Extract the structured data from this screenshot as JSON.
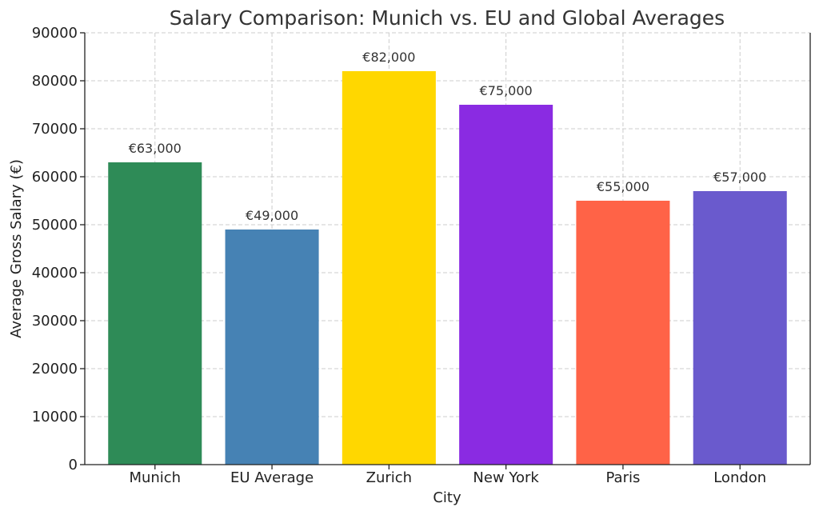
{
  "chart_data": {
    "type": "bar",
    "title": "Salary Comparison: Munich vs. EU and Global Averages",
    "xlabel": "City",
    "ylabel": "Average Gross Salary (€)",
    "categories": [
      "Munich",
      "EU Average",
      "Zurich",
      "New York",
      "Paris",
      "London"
    ],
    "values": [
      63000,
      49000,
      82000,
      75000,
      55000,
      57000
    ],
    "data_labels": [
      "€63,000",
      "€49,000",
      "€82,000",
      "€75,000",
      "€55,000",
      "€57,000"
    ],
    "colors": [
      "#2E8B57",
      "#4682B4",
      "#FFD700",
      "#8A2BE2",
      "#FF6347",
      "#6A5ACD"
    ],
    "ylim": [
      0,
      90000
    ],
    "yticks": [
      0,
      10000,
      20000,
      30000,
      40000,
      50000,
      60000,
      70000,
      80000,
      90000
    ],
    "ytick_labels": [
      "0",
      "10000",
      "20000",
      "30000",
      "40000",
      "50000",
      "60000",
      "70000",
      "80000",
      "90000"
    ],
    "grid": true
  }
}
